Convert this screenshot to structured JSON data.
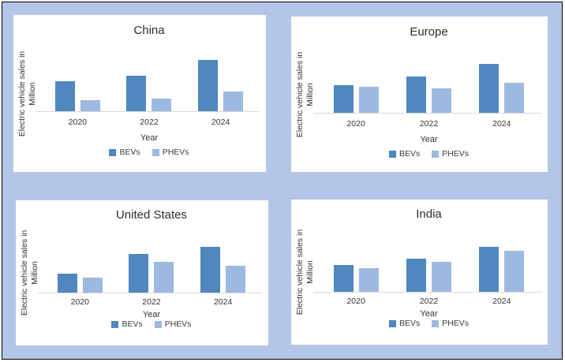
{
  "app": {
    "background_color": "#b4c6e7",
    "outer_border_color": "#000000",
    "panel_background": "#ffffff"
  },
  "colors": {
    "bevs": "#5087be",
    "phevs": "#9cb9e0",
    "axis_line": "#d9d9d9",
    "text": "#303030"
  },
  "legend": {
    "bevs_label": "BEVs",
    "phevs_label": "PHEVs"
  },
  "axis": {
    "x_label": "Year",
    "y_label_line1": "Electric vehicle sales in",
    "y_label_line2": "Million"
  },
  "chart_data": [
    {
      "type": "bar",
      "title": "China",
      "categories": [
        "2020",
        "2022",
        "2024"
      ],
      "series": [
        {
          "name": "BEVs",
          "values": [
            3.8,
            4.5,
            6.5
          ]
        },
        {
          "name": "PHEVs",
          "values": [
            1.4,
            1.6,
            2.5
          ]
        }
      ],
      "xlabel": "Year",
      "ylabel": "Electric vehicle sales in Million",
      "ylim": [
        0,
        7
      ],
      "y_tick_labels_visible": false,
      "gridlines": false,
      "legend_position": "bottom",
      "note": "no numeric y-axis shown; values estimated from relative bar heights"
    },
    {
      "type": "bar",
      "title": "Europe",
      "categories": [
        "2020",
        "2022",
        "2024"
      ],
      "series": [
        {
          "name": "BEVs",
          "values": [
            3.5,
            4.6,
            6.2
          ]
        },
        {
          "name": "PHEVs",
          "values": [
            3.3,
            3.1,
            3.8
          ]
        }
      ],
      "xlabel": "Year",
      "ylabel": "Electric vehicle sales in Million",
      "ylim": [
        0,
        7
      ],
      "y_tick_labels_visible": false,
      "gridlines": false,
      "legend_position": "bottom",
      "note": "no numeric y-axis shown; values estimated from relative bar heights"
    },
    {
      "type": "bar",
      "title": "United States",
      "categories": [
        "2020",
        "2022",
        "2024"
      ],
      "series": [
        {
          "name": "BEVs",
          "values": [
            2.4,
            4.9,
            5.8
          ]
        },
        {
          "name": "PHEVs",
          "values": [
            1.9,
            3.9,
            3.4
          ]
        }
      ],
      "xlabel": "Year",
      "ylabel": "Electric vehicle sales in Million",
      "ylim": [
        0,
        6
      ],
      "y_tick_labels_visible": false,
      "gridlines": false,
      "legend_position": "bottom",
      "note": "no numeric y-axis shown; values estimated from relative bar heights"
    },
    {
      "type": "bar",
      "title": "India",
      "categories": [
        "2020",
        "2022",
        "2024"
      ],
      "series": [
        {
          "name": "BEVs",
          "values": [
            3.4,
            4.2,
            5.7
          ]
        },
        {
          "name": "PHEVs",
          "values": [
            3.0,
            3.8,
            5.2
          ]
        }
      ],
      "xlabel": "Year",
      "ylabel": "Electric vehicle sales in Million",
      "ylim": [
        0,
        6
      ],
      "y_tick_labels_visible": false,
      "gridlines": false,
      "legend_position": "bottom",
      "note": "no numeric y-axis shown; values estimated from relative bar heights"
    }
  ]
}
